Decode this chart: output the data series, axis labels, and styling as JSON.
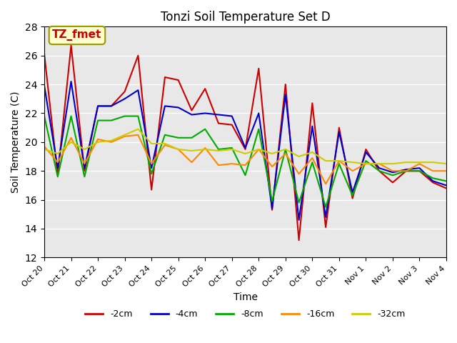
{
  "title": "Tonzi Soil Temperature Set D",
  "xlabel": "Time",
  "ylabel": "Soil Temperature (C)",
  "ylim": [
    12,
    28
  ],
  "xlim": [
    0,
    15
  ],
  "background_color": "#e8e8e8",
  "annotation_text": "TZ_fmet",
  "annotation_color": "#cc0000",
  "annotation_bg": "#ffffcc",
  "annotation_border": "#999900",
  "x_tick_labels": [
    "Oct 20",
    "Oct 21",
    "Oct 22",
    "Oct 23",
    "Oct 24",
    "Oct 25",
    "Oct 26",
    "Oct 27",
    "Oct 28",
    "Oct 29",
    "Oct 30",
    "Oct 31",
    "Nov 1",
    "Nov 2",
    "Nov 3",
    "Nov 4"
  ],
  "series": {
    "-2cm": {
      "color": "#cc0000",
      "x": [
        0,
        0.5,
        1,
        1.5,
        2,
        2.5,
        3,
        3.5,
        4,
        4.5,
        5,
        5.5,
        6,
        6.5,
        7,
        7.5,
        8,
        8.5,
        9,
        9.5,
        10,
        10.5,
        11,
        11.5,
        12,
        12.5,
        13,
        13.5,
        14,
        14.5,
        15
      ],
      "y": [
        26.1,
        17.7,
        26.7,
        18.0,
        22.5,
        22.5,
        23.5,
        26.0,
        16.7,
        24.5,
        24.3,
        22.2,
        23.7,
        21.3,
        21.2,
        19.5,
        25.1,
        15.3,
        24.0,
        13.2,
        22.7,
        14.1,
        21.0,
        16.1,
        19.5,
        18.0,
        17.2,
        18.0,
        18.0,
        17.2,
        16.8
      ]
    },
    "-4cm": {
      "color": "#0000cc",
      "x": [
        0,
        0.5,
        1,
        1.5,
        2,
        2.5,
        3,
        3.5,
        4,
        4.5,
        5,
        5.5,
        6,
        6.5,
        7,
        7.5,
        8,
        8.5,
        9,
        9.5,
        10,
        10.5,
        11,
        11.5,
        12,
        12.5,
        13,
        13.5,
        14,
        14.5,
        15
      ],
      "y": [
        23.9,
        18.2,
        24.2,
        18.2,
        22.5,
        22.5,
        23.0,
        23.6,
        18.2,
        22.5,
        22.4,
        21.9,
        22.0,
        21.9,
        21.8,
        19.6,
        22.0,
        15.4,
        23.3,
        14.6,
        21.1,
        14.8,
        20.7,
        16.5,
        19.3,
        18.2,
        17.9,
        18.1,
        18.2,
        17.3,
        17.0
      ]
    },
    "-8cm": {
      "color": "#00aa00",
      "x": [
        0,
        0.5,
        1,
        1.5,
        2,
        2.5,
        3,
        3.5,
        4,
        4.5,
        5,
        5.5,
        6,
        6.5,
        7,
        7.5,
        8,
        8.5,
        9,
        9.5,
        10,
        10.5,
        11,
        11.5,
        12,
        12.5,
        13,
        13.5,
        14,
        14.5,
        15
      ],
      "y": [
        21.8,
        17.6,
        21.8,
        17.6,
        21.5,
        21.5,
        21.8,
        21.8,
        17.8,
        20.5,
        20.3,
        20.3,
        20.9,
        19.5,
        19.6,
        17.7,
        20.9,
        15.9,
        19.5,
        15.8,
        18.6,
        15.5,
        18.5,
        16.3,
        18.7,
        18.0,
        17.7,
        18.0,
        18.0,
        17.5,
        17.3
      ]
    },
    "-16cm": {
      "color": "#ff8800",
      "x": [
        0,
        0.5,
        1,
        1.5,
        2,
        2.5,
        3,
        3.5,
        4,
        4.5,
        5,
        5.5,
        6,
        6.5,
        7,
        7.5,
        8,
        8.5,
        9,
        9.5,
        10,
        10.5,
        11,
        11.5,
        12,
        12.5,
        13,
        13.5,
        14,
        14.5,
        15
      ],
      "y": [
        19.7,
        18.6,
        20.3,
        18.5,
        20.2,
        20.0,
        20.4,
        20.5,
        18.5,
        19.8,
        19.5,
        18.6,
        19.6,
        18.4,
        18.5,
        18.4,
        19.5,
        18.3,
        19.2,
        17.8,
        18.9,
        17.1,
        18.7,
        18.0,
        18.5,
        18.5,
        18.0,
        18.0,
        18.5,
        18.0,
        18.0
      ]
    },
    "-32cm": {
      "color": "#cccc00",
      "x": [
        0,
        0.5,
        1,
        1.5,
        2,
        2.5,
        3,
        3.5,
        4,
        4.5,
        5,
        5.5,
        6,
        6.5,
        7,
        7.5,
        8,
        8.5,
        9,
        9.5,
        10,
        10.5,
        11,
        11.5,
        12,
        12.5,
        13,
        13.5,
        14,
        14.5,
        15
      ],
      "y": [
        19.5,
        19.2,
        20.0,
        19.5,
        20.0,
        20.1,
        20.5,
        20.9,
        19.9,
        19.9,
        19.5,
        19.4,
        19.5,
        19.4,
        19.5,
        19.2,
        19.5,
        19.2,
        19.5,
        19.0,
        19.3,
        18.7,
        18.7,
        18.6,
        18.5,
        18.5,
        18.5,
        18.6,
        18.6,
        18.6,
        18.5
      ]
    }
  }
}
